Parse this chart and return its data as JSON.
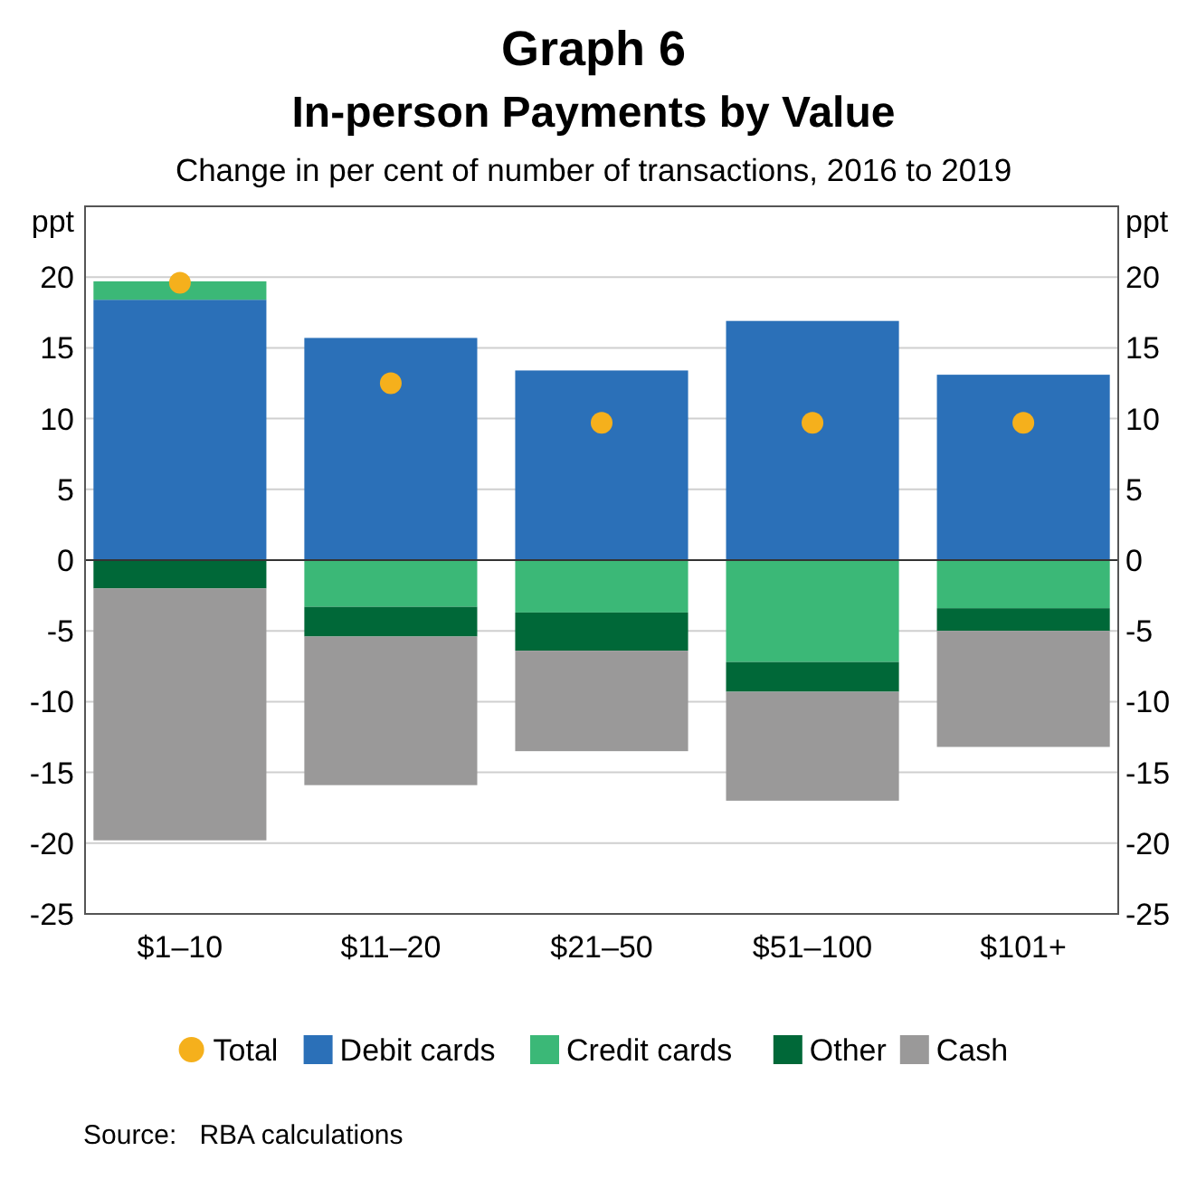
{
  "chart_data": {
    "type": "bar",
    "title": "Graph 6",
    "subtitle": "In-person Payments by Value\nChange in per cent of number of transactions, 2016 to 2019",
    "ylabel": "ppt",
    "y2label": "ppt",
    "categories": [
      "$1–10",
      "$11–20",
      "$21–50",
      "$51–100",
      "$101+"
    ],
    "stacked": true,
    "series": [
      {
        "name": "Total",
        "type": "scatter",
        "color": "#f5b01c",
        "x": [
          "$1–10",
          "$11–20",
          "$21–50",
          "$51–100",
          "$101+"
        ],
        "values": [
          19.6,
          12.5,
          9.7,
          9.7,
          9.7
        ]
      },
      {
        "name": "Debit cards",
        "color": "#2b70b8",
        "values": [
          18.4,
          15.7,
          13.4,
          16.9,
          13.1
        ]
      },
      {
        "name": "Credit cards",
        "color": "#3bb877",
        "values": [
          1.3,
          -3.3,
          -3.7,
          -7.2,
          -3.4
        ]
      },
      {
        "name": "Other",
        "color": "#006838",
        "values": [
          -2.0,
          -2.1,
          -2.7,
          -2.1,
          -1.6
        ]
      },
      {
        "name": "Cash",
        "color": "#9a9999",
        "values": [
          -17.8,
          -10.5,
          -7.1,
          -7.7,
          -8.2
        ]
      }
    ],
    "ylim": [
      -25,
      25
    ],
    "yticks": [
      -25,
      -20,
      -15,
      -10,
      -5,
      0,
      5,
      10,
      15,
      20
    ],
    "y2lim": [
      -25,
      25
    ],
    "y2ticks": [
      -25,
      -20,
      -15,
      -10,
      -5,
      0,
      5,
      10,
      15,
      20
    ],
    "grid": "y",
    "legend": "bottom",
    "marker": "circle",
    "annotations": [
      "Source:   RBA calculations"
    ]
  }
}
